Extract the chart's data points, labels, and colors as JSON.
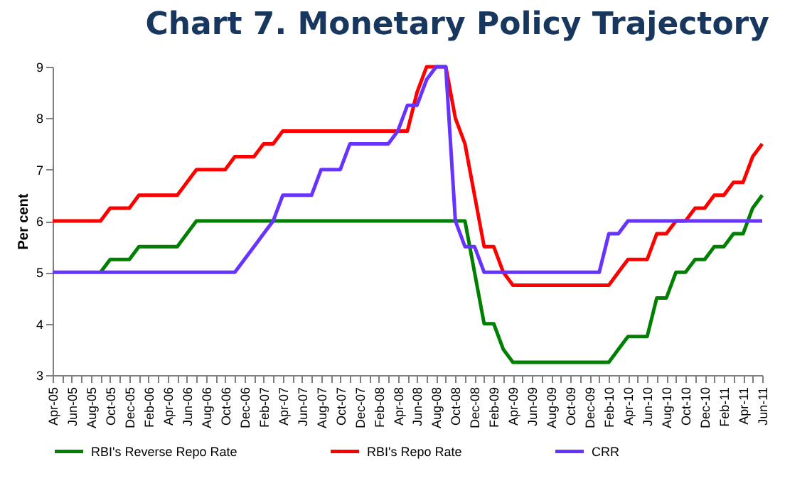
{
  "chart_data": {
    "type": "line",
    "title": "Chart 7. Monetary Policy Trajectory",
    "ylabel": "Per cent",
    "categories": [
      "Apr-05",
      null,
      "Jun-05",
      null,
      "Aug-05",
      null,
      "Oct-05",
      null,
      "Dec-05",
      null,
      "Feb-06",
      null,
      "Apr-06",
      null,
      "Jun-06",
      null,
      "Aug-06",
      null,
      "Oct-06",
      null,
      "Dec-06",
      null,
      "Feb-07",
      null,
      "Apr-07",
      null,
      "Jun-07",
      null,
      "Aug-07",
      null,
      "Oct-07",
      null,
      "Dec-07",
      null,
      "Feb-08",
      null,
      "Apr-08",
      null,
      "Jun-08",
      null,
      "Aug-08",
      null,
      "Oct-08",
      null,
      "Dec-08",
      null,
      "Feb-09",
      null,
      "Apr-09",
      null,
      "Jun-09",
      null,
      "Aug-09",
      null,
      "Oct-09",
      null,
      "Dec-09",
      null,
      "Feb-10",
      null,
      "Apr-10",
      null,
      "Jun-10",
      null,
      "Aug-10",
      null,
      "Oct-10",
      null,
      "Dec-10",
      null,
      "Feb-11",
      null,
      "Apr-11",
      null,
      "Jun-11"
    ],
    "series": [
      {
        "name": "RBI's Reverse Repo Rate",
        "color": "#008000",
        "values": [
          null,
          null,
          null,
          null,
          null,
          5,
          5.25,
          5.25,
          5.25,
          5.5,
          5.5,
          5.5,
          5.5,
          5.5,
          5.75,
          6,
          6,
          6,
          6,
          6,
          6,
          6,
          6,
          6,
          6,
          6,
          6,
          6,
          6,
          6,
          6,
          6,
          6,
          6,
          6,
          6,
          6,
          6,
          6,
          6,
          6,
          6,
          6,
          6,
          5,
          4,
          4,
          3.5,
          3.25,
          3.25,
          3.25,
          3.25,
          3.25,
          3.25,
          3.25,
          3.25,
          3.25,
          3.25,
          3.25,
          3.5,
          3.75,
          3.75,
          3.75,
          4.5,
          4.5,
          5,
          5,
          5.25,
          5.25,
          5.5,
          5.5,
          5.75,
          5.75,
          6.25,
          6.5
        ]
      },
      {
        "name": "RBI's Repo Rate",
        "color": "#ff0000",
        "values": [
          6,
          6,
          6,
          6,
          6,
          6,
          6.25,
          6.25,
          6.25,
          6.5,
          6.5,
          6.5,
          6.5,
          6.5,
          6.75,
          7,
          7,
          7,
          7,
          7.25,
          7.25,
          7.25,
          7.5,
          7.5,
          7.75,
          7.75,
          7.75,
          7.75,
          7.75,
          7.75,
          7.75,
          7.75,
          7.75,
          7.75,
          7.75,
          7.75,
          7.75,
          7.75,
          8.5,
          9,
          9,
          9,
          8,
          7.5,
          6.5,
          5.5,
          5.5,
          5,
          4.75,
          4.75,
          4.75,
          4.75,
          4.75,
          4.75,
          4.75,
          4.75,
          4.75,
          4.75,
          4.75,
          5,
          5.25,
          5.25,
          5.25,
          5.75,
          5.75,
          6,
          6,
          6.25,
          6.25,
          6.5,
          6.5,
          6.75,
          6.75,
          7.25,
          7.5
        ]
      },
      {
        "name": "CRR",
        "color": "#6633ff",
        "values": [
          5,
          5,
          5,
          5,
          5,
          5,
          5,
          5,
          5,
          5,
          5,
          5,
          5,
          5,
          5,
          5,
          5,
          5,
          5,
          5,
          5.25,
          5.5,
          5.75,
          6,
          6.5,
          6.5,
          6.5,
          6.5,
          7,
          7,
          7,
          7.5,
          7.5,
          7.5,
          7.5,
          7.5,
          7.75,
          8.25,
          8.25,
          8.75,
          9,
          9,
          6,
          5.5,
          5.5,
          5,
          5,
          5,
          5,
          5,
          5,
          5,
          5,
          5,
          5,
          5,
          5,
          5,
          5.75,
          5.75,
          6,
          6,
          6,
          6,
          6,
          6,
          6,
          6,
          6,
          6,
          6,
          6,
          6,
          6,
          6
        ]
      }
    ],
    "ylim": [
      3,
      9
    ],
    "yticks": [
      3,
      4,
      5,
      6,
      7,
      8,
      9
    ],
    "legend": "bottom"
  }
}
